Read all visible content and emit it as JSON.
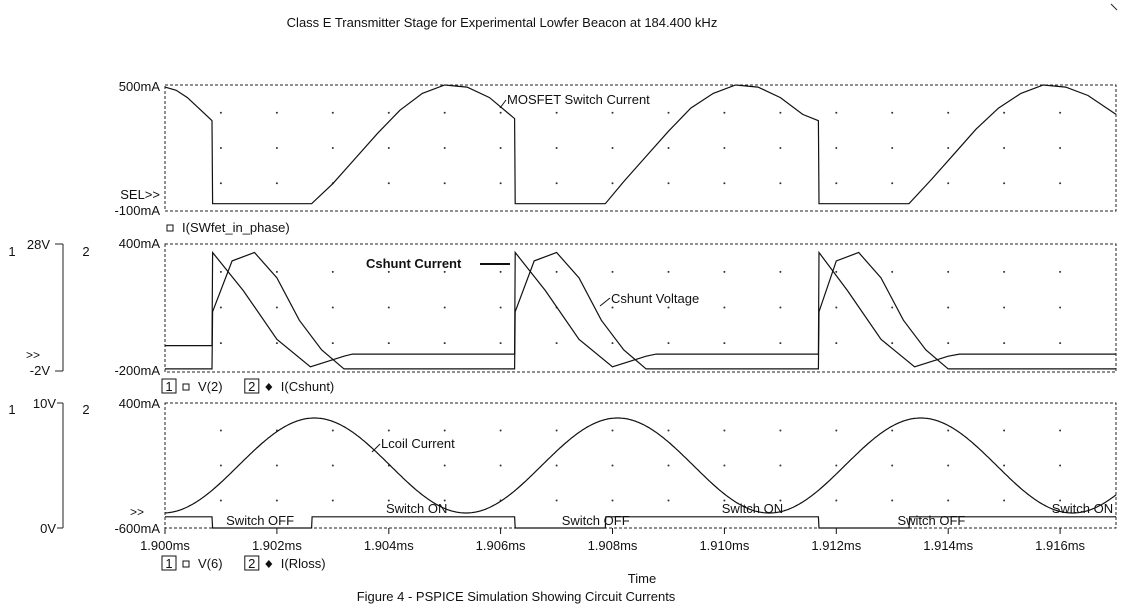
{
  "title": "Class E Transmitter Stage for Experimental Lowfer Beacon at 184.400 kHz",
  "caption": "Figure 4 - PSPICE Simulation Showing Circuit Currents",
  "chart_data": [
    {
      "type": "line",
      "panel": "top",
      "ylim": [
        -0.1,
        0.5
      ],
      "y_top_label": "500mA",
      "y_bottom_label": "-100mA",
      "sel_marker": "SEL>>",
      "legend": [
        {
          "marker": "square",
          "text": "I(SWfet_in_phase)"
        }
      ],
      "annotations": [
        {
          "text": "MOSFET Switch Current",
          "at_x": 1.9052
        }
      ],
      "series": [
        {
          "legend_index": 0,
          "x": [
            1.9,
            1.9002,
            1.9004,
            1.9006,
            1.9008,
            1.90084,
            1.90085,
            1.9012,
            1.9016,
            1.902,
            1.90262,
            1.903,
            1.9034,
            1.9038,
            1.9042,
            1.9046,
            1.905,
            1.9054,
            1.9058,
            1.90625,
            1.90626,
            1.9066,
            1.907,
            1.9074,
            1.90787,
            1.9082,
            1.9086,
            1.909,
            1.9094,
            1.9098,
            1.9102,
            1.9106,
            1.911,
            1.9114,
            1.91168,
            1.91169,
            1.912,
            1.9124,
            1.9128,
            1.9133,
            1.9137,
            1.9141,
            1.9145,
            1.9149,
            1.9153,
            1.9157,
            1.9161,
            1.9165,
            1.917
          ],
          "values": [
            0.49,
            0.475,
            0.44,
            0.39,
            0.34,
            0.33,
            -0.065,
            -0.065,
            -0.065,
            -0.065,
            -0.065,
            0.03,
            0.15,
            0.27,
            0.38,
            0.46,
            0.5,
            0.49,
            0.44,
            0.34,
            -0.065,
            -0.065,
            -0.065,
            -0.065,
            -0.065,
            0.04,
            0.16,
            0.28,
            0.39,
            0.46,
            0.5,
            0.49,
            0.44,
            0.36,
            0.33,
            -0.065,
            -0.065,
            -0.065,
            -0.065,
            -0.065,
            0.05,
            0.17,
            0.29,
            0.39,
            0.46,
            0.5,
            0.49,
            0.45,
            0.36
          ]
        }
      ]
    },
    {
      "type": "line",
      "panel": "middle",
      "y1_range": [
        -2,
        28
      ],
      "y1_top_label": "28V",
      "y1_bottom_label": "-2V",
      "y2_range": [
        -0.2,
        0.4
      ],
      "y2_top_label": "400mA",
      "y2_bottom_label": "-200mA",
      "axis_numbers": [
        "1",
        "2"
      ],
      "sel_marker": ">>",
      "legend": [
        {
          "index": "1",
          "marker": "square",
          "text": "V(2)"
        },
        {
          "index": "2",
          "marker": "diamond",
          "text": "I(Cshunt)"
        }
      ],
      "annotations": [
        {
          "text": "Cshunt Current",
          "at_x": 1.90625
        },
        {
          "text": "Cshunt Voltage",
          "at_x": 1.9081
        }
      ],
      "series": [
        {
          "legend_index": 0,
          "x": [
            1.9,
            1.90084,
            1.90085,
            1.9012,
            1.9016,
            1.902,
            1.9024,
            1.9028,
            1.9032,
            1.9036,
            1.90625,
            1.90626,
            1.9066,
            1.907,
            1.9074,
            1.9078,
            1.9082,
            1.9086,
            1.909,
            1.91168,
            1.91169,
            1.912,
            1.9124,
            1.9128,
            1.9132,
            1.9136,
            1.914,
            1.9144,
            1.917
          ],
          "values": [
            -1.5,
            -1.5,
            12.0,
            24.0,
            26.0,
            20.0,
            10.0,
            3.0,
            -1.5,
            -1.5,
            -1.5,
            12.0,
            24.0,
            26.0,
            20.0,
            10.0,
            3.0,
            -1.5,
            -1.5,
            -1.5,
            12.0,
            24.0,
            26.0,
            20.0,
            10.0,
            3.0,
            -1.5,
            -1.5,
            -1.5
          ]
        },
        {
          "legend_index": 1,
          "x": [
            1.9,
            1.90084,
            1.90085,
            1.9014,
            1.902,
            1.9026,
            1.9032,
            1.90335,
            1.90336,
            1.90625,
            1.90626,
            1.9068,
            1.9074,
            1.908,
            1.9086,
            1.90878,
            1.90879,
            1.91168,
            1.91169,
            1.9122,
            1.9128,
            1.9134,
            1.914,
            1.9142,
            1.91421,
            1.917
          ],
          "values": [
            -0.08,
            -0.08,
            0.36,
            0.18,
            -0.05,
            -0.18,
            -0.13,
            -0.12,
            -0.12,
            -0.12,
            0.36,
            0.18,
            -0.05,
            -0.18,
            -0.13,
            -0.12,
            -0.12,
            -0.12,
            0.36,
            0.18,
            -0.05,
            -0.18,
            -0.13,
            -0.12,
            -0.12,
            -0.12
          ]
        }
      ]
    },
    {
      "type": "line",
      "panel": "bottom",
      "y1_range": [
        0,
        10
      ],
      "y1_top_label": "10V",
      "y1_bottom_label": "0V",
      "y2_range": [
        -0.6,
        0.4
      ],
      "y2_top_label": "400mA",
      "y2_bottom_label": "-600mA",
      "axis_numbers": [
        "1",
        "2"
      ],
      "sel_marker": ">>",
      "legend": [
        {
          "index": "1",
          "marker": "square",
          "text": "V(6)"
        },
        {
          "index": "2",
          "marker": "diamond",
          "text": "I(Rloss)"
        }
      ],
      "annotations": [
        {
          "text": "Lcoil Current",
          "at_x": 1.9045
        },
        {
          "text": "Switch OFF",
          "at_x": 1.9017
        },
        {
          "text": "Switch ON",
          "at_x": 1.9045
        },
        {
          "text": "Switch OFF",
          "at_x": 1.9077
        },
        {
          "text": "Switch ON",
          "at_x": 1.9105
        },
        {
          "text": "Switch OFF",
          "at_x": 1.9137
        },
        {
          "text": "Switch ON",
          "at_x": 1.9164
        }
      ],
      "xlabel": "Time",
      "x_ticks": [
        "1.900ms",
        "1.902ms",
        "1.904ms",
        "1.906ms",
        "1.908ms",
        "1.910ms",
        "1.912ms",
        "1.914ms",
        "1.916ms"
      ],
      "x_tick_values": [
        1.9,
        1.902,
        1.904,
        1.906,
        1.908,
        1.91,
        1.912,
        1.914,
        1.916
      ],
      "xlim": [
        1.9,
        1.917
      ],
      "series": [
        {
          "legend_index": 0,
          "x": [
            1.9,
            1.90084,
            1.90085,
            1.90262,
            1.90263,
            1.90625,
            1.90626,
            1.90787,
            1.90788,
            1.91168,
            1.91169,
            1.9133,
            1.91331,
            1.917
          ],
          "values": [
            0.9,
            0.9,
            0,
            0,
            0.9,
            0.9,
            0,
            0,
            0.9,
            0.9,
            0,
            0,
            0.9,
            0.9
          ]
        },
        {
          "legend_index": 1,
          "sinusoid": {
            "amplitude": 0.38,
            "offset": -0.1,
            "period": 0.00542,
            "peak_x": 1.90267
          },
          "x": [
            1.9,
            1.9005,
            1.901,
            1.9015,
            1.902,
            1.90267,
            1.9032,
            1.9038,
            1.9044,
            1.905,
            1.90538,
            1.906,
            1.9065,
            1.907,
            1.9075,
            1.90809,
            1.9086,
            1.9092,
            1.9098,
            1.9104,
            1.9108,
            1.9114,
            1.9119,
            1.9124,
            1.9129,
            1.91351,
            1.914,
            1.9146,
            1.9152,
            1.9158,
            1.9162,
            1.9166,
            1.917
          ],
          "values": [
            -0.43,
            -0.34,
            -0.2,
            -0.04,
            0.12,
            0.28,
            0.19,
            0.01,
            -0.2,
            -0.38,
            -0.48,
            -0.4,
            -0.22,
            -0.02,
            0.17,
            0.28,
            0.19,
            0.01,
            -0.2,
            -0.38,
            -0.48,
            -0.4,
            -0.23,
            -0.03,
            0.16,
            0.28,
            0.2,
            0.02,
            -0.19,
            -0.37,
            -0.48,
            -0.43,
            -0.3
          ]
        }
      ]
    }
  ]
}
